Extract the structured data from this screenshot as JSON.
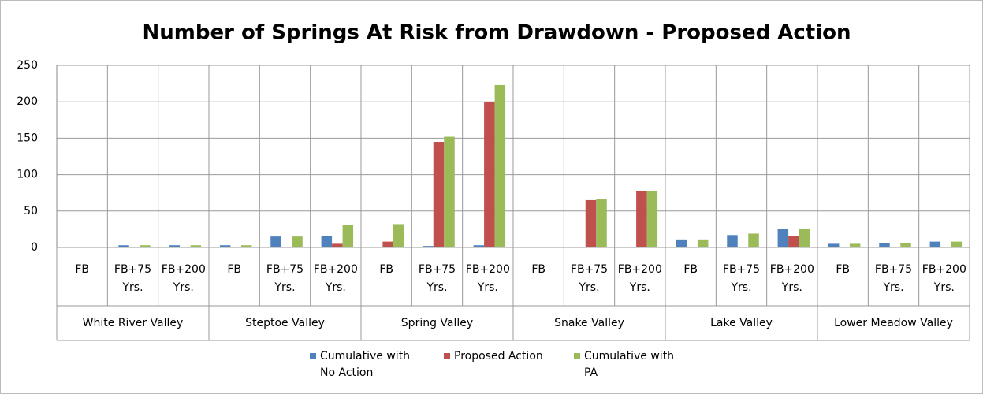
{
  "chart_data": {
    "type": "bar",
    "title": "Number of Springs At Risk from Drawdown - Proposed Action",
    "groups": [
      "White River Valley",
      "Steptoe Valley",
      "Spring Valley",
      "Snake Valley",
      "Lake Valley",
      "Lower Meadow Valley"
    ],
    "categories": [
      "FB",
      "FB+75 Yrs.",
      "FB+200 Yrs.",
      "FB",
      "FB+75 Yrs.",
      "FB+200 Yrs.",
      "FB",
      "FB+75 Yrs.",
      "FB+200 Yrs.",
      "FB",
      "FB+75 Yrs.",
      "FB+200 Yrs.",
      "FB",
      "FB+75 Yrs.",
      "FB+200 Yrs.",
      "FB",
      "FB+75 Yrs.",
      "FB+200 Yrs."
    ],
    "series": [
      {
        "name": "Cumulative with No Action",
        "color": "#4f81bd",
        "values": [
          0,
          3,
          3,
          3,
          15,
          16,
          0,
          2,
          3,
          0,
          0,
          0,
          11,
          17,
          26,
          5,
          6,
          8
        ]
      },
      {
        "name": "Proposed Action",
        "color": "#c0504d",
        "values": [
          0,
          0,
          0,
          0,
          0,
          5,
          8,
          145,
          200,
          0,
          65,
          77,
          0,
          0,
          16,
          0,
          0,
          0
        ]
      },
      {
        "name": "Cumulative with PA",
        "color": "#9bbb59",
        "values": [
          0,
          3,
          3,
          3,
          15,
          31,
          32,
          152,
          223,
          0,
          66,
          78,
          11,
          19,
          26,
          5,
          6,
          8
        ]
      }
    ],
    "ylim": [
      0,
      250
    ],
    "yticks": [
      0,
      50,
      100,
      150,
      200,
      250
    ],
    "grid": true,
    "legend": "bottom"
  }
}
